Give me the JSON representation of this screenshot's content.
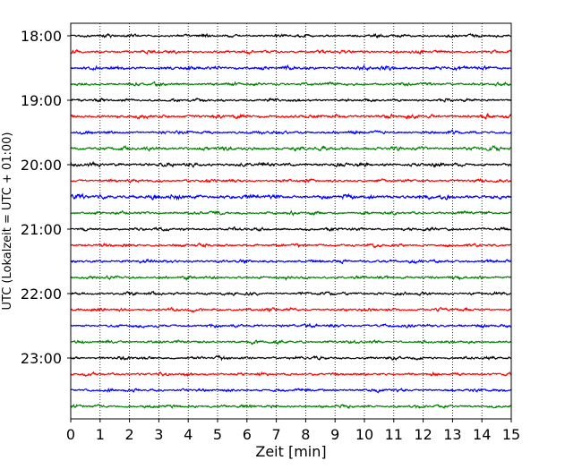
{
  "chart_data": {
    "type": "line",
    "title": "",
    "xlabel": "Zeit  [min]",
    "ylabel": "UTC (Lokalzeit = UTC + 01:00)",
    "xlim": [
      0,
      15
    ],
    "x_ticks": [
      "0",
      "1",
      "2",
      "3",
      "4",
      "5",
      "6",
      "7",
      "8",
      "9",
      "10",
      "11",
      "12",
      "13",
      "14",
      "15"
    ],
    "y_ticks": [
      {
        "label": "18:00",
        "trace_index": 0
      },
      {
        "label": "19:00",
        "trace_index": 4
      },
      {
        "label": "20:00",
        "trace_index": 8
      },
      {
        "label": "21:00",
        "trace_index": 12
      },
      {
        "label": "22:00",
        "trace_index": 16
      },
      {
        "label": "23:00",
        "trace_index": 20
      }
    ],
    "grid": "vertical dotted lines at each minute",
    "traces_per_hour": 4,
    "minutes_per_trace": 15,
    "trace_start_times": [
      "18:00",
      "18:15",
      "18:30",
      "18:45",
      "19:00",
      "19:15",
      "19:30",
      "19:45",
      "20:00",
      "20:15",
      "20:30",
      "20:45",
      "21:00",
      "21:15",
      "21:30",
      "21:45",
      "22:00",
      "22:15",
      "22:30",
      "22:45",
      "23:00",
      "23:15",
      "23:30",
      "23:45"
    ],
    "trace_colors": [
      "#000000",
      "#ff0000",
      "#0000ff",
      "#008000"
    ],
    "trace_amplitude_level": [
      0.5,
      0.5,
      0.6,
      0.5,
      0.5,
      0.6,
      0.5,
      0.6,
      0.6,
      0.5,
      0.7,
      0.5,
      0.5,
      0.5,
      0.5,
      0.5,
      0.5,
      0.5,
      0.5,
      0.5,
      0.5,
      0.5,
      0.5,
      0.5
    ]
  }
}
